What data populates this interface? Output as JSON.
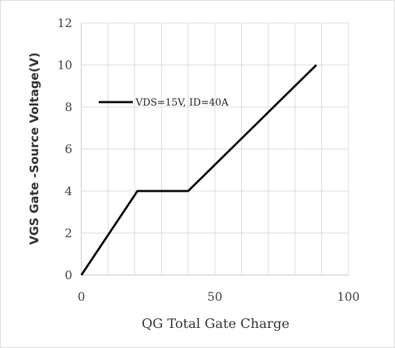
{
  "chart_data": {
    "type": "line",
    "title": "",
    "xlabel": "QG Total Gate Charge",
    "ylabel": "VGS Gate -Source Voltage(V)",
    "xlim": [
      0,
      100
    ],
    "ylim": [
      0,
      12
    ],
    "x_ticks": [
      "0",
      "50",
      "100"
    ],
    "y_ticks": [
      "0",
      "2",
      "4",
      "6",
      "8",
      "10",
      "12"
    ],
    "x_tick_values": [
      0,
      50,
      100
    ],
    "y_tick_values": [
      0,
      2,
      4,
      6,
      8,
      10,
      12
    ],
    "x_grid_step": 10,
    "y_grid_step": 2,
    "grid": true,
    "legend_position": "top-left",
    "series": [
      {
        "name": "VDS=15V, ID=40A",
        "color": "#000000",
        "x": [
          0,
          21,
          40,
          88
        ],
        "y": [
          0,
          4,
          4,
          10
        ]
      }
    ]
  }
}
